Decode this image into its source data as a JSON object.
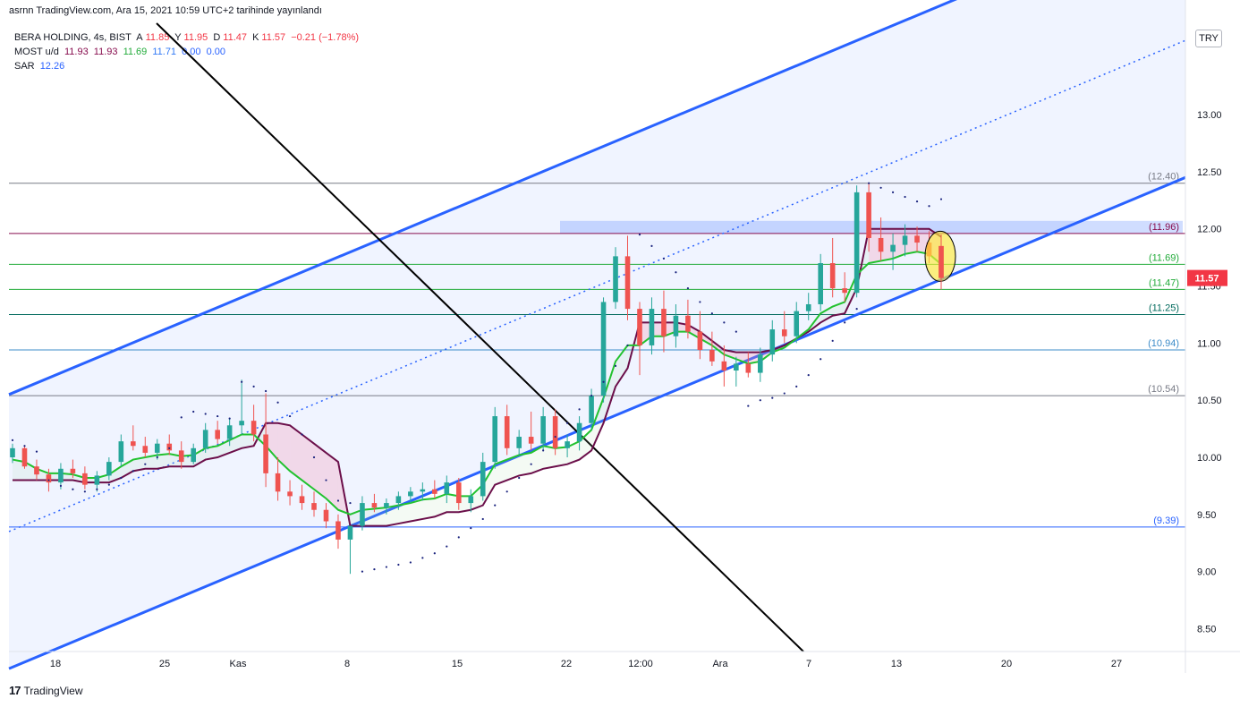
{
  "header": {
    "published": "asrnn TradingView.com, Ara 15, 2021 10:59 UTC+2 tarihinde yayınlandı"
  },
  "legend": {
    "symbol": "BERA HOLDING, 4s, BIST",
    "a_label": "A",
    "a_value": "11.85",
    "y_label": "Y",
    "y_value": "11.95",
    "d_label": "D",
    "d_value": "11.47",
    "k_label": "K",
    "k_value": "11.57",
    "change": "−0.21 (−1.78%)",
    "most_label": "MOST  u/d",
    "most_values": [
      "11.93",
      "11.93",
      "11.69",
      "11.71",
      "0.00",
      "0.00"
    ],
    "sar_label": "SAR",
    "sar_value": "12.26"
  },
  "currency_button": "TRY",
  "brand": {
    "logo": "17",
    "name": "TradingView"
  },
  "colors": {
    "up": "#26a69a",
    "down": "#ef5350",
    "channel": "#2962ff",
    "most": "#22c22f",
    "most_stop": "#6b0f4a",
    "sar": "#1a237e",
    "trend": "#000000",
    "band": "#2962ff"
  },
  "chart_data": {
    "type": "candlestick",
    "title": "",
    "xlabel": "",
    "ylabel": "",
    "ylim": [
      8.3,
      13.8
    ],
    "grid": false,
    "x_ticks": [
      "18",
      "25",
      "Kas",
      "8",
      "15",
      "22",
      "12:00",
      "Ara",
      "7",
      "13",
      "20",
      "27"
    ],
    "y_ticks": [
      "8.50",
      "9.00",
      "9.50",
      "10.00",
      "10.50",
      "11.00",
      "11.50",
      "12.00",
      "12.50",
      "13.00"
    ],
    "last_price": "11.57",
    "levels": [
      {
        "value": 12.4,
        "label": "(12.40)",
        "color": "#787b86"
      },
      {
        "value": 11.96,
        "label": "(11.96)",
        "color": "#880e4f"
      },
      {
        "value": 11.69,
        "label": "(11.69)",
        "color": "#22ab3a"
      },
      {
        "value": 11.47,
        "label": "(11.47)",
        "color": "#22ab3a"
      },
      {
        "value": 11.25,
        "label": "(11.25)",
        "color": "#00695c"
      },
      {
        "value": 10.94,
        "label": "(10.94)",
        "color": "#3d8cc9"
      },
      {
        "value": 10.54,
        "label": "(10.54)",
        "color": "#787b86"
      },
      {
        "value": 9.39,
        "label": "(9.39)",
        "color": "#2962ff"
      }
    ],
    "channel_low_start": 8.15,
    "channel_low_end": 12.45,
    "channel_width": 2.4,
    "candles": [
      [
        10.0,
        10.12,
        9.95,
        10.08
      ],
      [
        10.08,
        10.1,
        9.9,
        9.92
      ],
      [
        9.92,
        9.98,
        9.8,
        9.85
      ],
      [
        9.85,
        9.9,
        9.7,
        9.78
      ],
      [
        9.78,
        9.95,
        9.72,
        9.9
      ],
      [
        9.9,
        9.98,
        9.82,
        9.86
      ],
      [
        9.86,
        9.92,
        9.72,
        9.76
      ],
      [
        9.76,
        9.88,
        9.7,
        9.84
      ],
      [
        9.84,
        10.0,
        9.8,
        9.96
      ],
      [
        9.96,
        10.2,
        9.92,
        10.14
      ],
      [
        10.14,
        10.28,
        10.06,
        10.1
      ],
      [
        10.1,
        10.18,
        10.0,
        10.04
      ],
      [
        10.04,
        10.16,
        9.98,
        10.12
      ],
      [
        10.12,
        10.2,
        10.02,
        10.06
      ],
      [
        10.06,
        10.14,
        9.9,
        9.96
      ],
      [
        9.96,
        10.12,
        9.94,
        10.08
      ],
      [
        10.08,
        10.3,
        10.04,
        10.24
      ],
      [
        10.24,
        10.32,
        10.12,
        10.16
      ],
      [
        10.16,
        10.34,
        10.1,
        10.28
      ],
      [
        10.28,
        10.68,
        10.2,
        10.32
      ],
      [
        10.32,
        10.46,
        10.14,
        10.2
      ],
      [
        10.2,
        10.56,
        9.74,
        9.86
      ],
      [
        9.86,
        10.0,
        9.62,
        9.7
      ],
      [
        9.7,
        9.8,
        9.58,
        9.66
      ],
      [
        9.66,
        9.76,
        9.54,
        9.6
      ],
      [
        9.6,
        9.7,
        9.48,
        9.54
      ],
      [
        9.54,
        9.6,
        9.38,
        9.44
      ],
      [
        9.44,
        9.5,
        9.2,
        9.28
      ],
      [
        9.28,
        9.4,
        8.98,
        9.4
      ],
      [
        9.4,
        9.66,
        9.36,
        9.6
      ],
      [
        9.6,
        9.68,
        9.52,
        9.56
      ],
      [
        9.56,
        9.64,
        9.5,
        9.6
      ],
      [
        9.6,
        9.7,
        9.54,
        9.66
      ],
      [
        9.66,
        9.74,
        9.6,
        9.7
      ],
      [
        9.7,
        9.78,
        9.62,
        9.72
      ],
      [
        9.72,
        9.8,
        9.64,
        9.68
      ],
      [
        9.68,
        9.84,
        9.6,
        9.78
      ],
      [
        9.78,
        9.82,
        9.54,
        9.6
      ],
      [
        9.6,
        9.72,
        9.52,
        9.66
      ],
      [
        9.66,
        10.04,
        9.62,
        9.96
      ],
      [
        9.96,
        10.44,
        9.9,
        10.36
      ],
      [
        10.36,
        10.46,
        10.02,
        10.08
      ],
      [
        10.08,
        10.24,
        10.02,
        10.18
      ],
      [
        10.18,
        10.4,
        10.06,
        10.12
      ],
      [
        10.12,
        10.44,
        10.06,
        10.36
      ],
      [
        10.36,
        10.42,
        10.02,
        10.08
      ],
      [
        10.08,
        10.2,
        10.0,
        10.14
      ],
      [
        10.14,
        10.36,
        10.06,
        10.3
      ],
      [
        10.3,
        10.6,
        10.24,
        10.54
      ],
      [
        10.54,
        11.4,
        10.48,
        11.36
      ],
      [
        11.36,
        11.84,
        11.3,
        11.76
      ],
      [
        11.76,
        11.94,
        11.2,
        11.3
      ],
      [
        11.3,
        11.36,
        10.72,
        10.98
      ],
      [
        10.98,
        11.4,
        10.9,
        11.3
      ],
      [
        11.3,
        11.46,
        10.92,
        11.06
      ],
      [
        11.06,
        11.34,
        10.96,
        11.24
      ],
      [
        11.24,
        11.38,
        11.04,
        11.1
      ],
      [
        11.1,
        11.28,
        10.86,
        10.94
      ],
      [
        10.94,
        11.1,
        10.8,
        10.84
      ],
      [
        10.84,
        10.98,
        10.62,
        10.76
      ],
      [
        10.76,
        10.88,
        10.62,
        10.82
      ],
      [
        10.82,
        10.92,
        10.7,
        10.74
      ],
      [
        10.74,
        10.96,
        10.66,
        10.9
      ],
      [
        10.9,
        11.2,
        10.84,
        11.12
      ],
      [
        11.12,
        11.28,
        11.0,
        11.06
      ],
      [
        11.06,
        11.36,
        11.0,
        11.28
      ],
      [
        11.28,
        11.44,
        11.2,
        11.34
      ],
      [
        11.34,
        11.78,
        11.28,
        11.7
      ],
      [
        11.7,
        11.92,
        11.4,
        11.48
      ],
      [
        11.48,
        11.62,
        11.36,
        11.44
      ],
      [
        11.44,
        12.38,
        11.4,
        12.32
      ],
      [
        12.32,
        12.4,
        11.8,
        11.92
      ],
      [
        11.92,
        12.1,
        11.72,
        11.8
      ],
      [
        11.8,
        11.96,
        11.64,
        11.86
      ],
      [
        11.86,
        12.04,
        11.76,
        11.94
      ],
      [
        11.94,
        12.02,
        11.8,
        11.88
      ],
      [
        11.88,
        11.98,
        11.7,
        11.76
      ],
      [
        11.85,
        11.95,
        11.47,
        11.57
      ]
    ],
    "most": [
      9.98,
      9.96,
      9.9,
      9.86,
      9.86,
      9.85,
      9.82,
      9.82,
      9.85,
      9.92,
      9.98,
      10.0,
      10.02,
      10.03,
      10.01,
      10.02,
      10.08,
      10.1,
      10.15,
      10.2,
      10.2,
      10.1,
      9.98,
      9.88,
      9.8,
      9.72,
      9.64,
      9.54,
      9.5,
      9.54,
      9.55,
      9.56,
      9.58,
      9.6,
      9.63,
      9.64,
      9.68,
      9.66,
      9.66,
      9.76,
      9.94,
      9.98,
      10.02,
      10.04,
      10.1,
      10.08,
      10.09,
      10.14,
      10.24,
      10.52,
      10.84,
      10.98,
      10.98,
      11.06,
      11.06,
      11.1,
      11.1,
      11.04,
      10.98,
      10.9,
      10.86,
      10.82,
      10.84,
      10.92,
      10.96,
      11.04,
      11.12,
      11.26,
      11.32,
      11.36,
      11.6,
      11.7,
      11.72,
      11.74,
      11.78,
      11.8,
      11.78,
      11.69
    ],
    "most_stop": [
      9.8,
      9.8,
      9.8,
      9.8,
      9.8,
      9.8,
      9.78,
      9.78,
      9.78,
      9.82,
      9.88,
      9.9,
      9.9,
      9.92,
      9.92,
      9.92,
      9.98,
      10.0,
      10.04,
      10.08,
      10.1,
      10.3,
      10.3,
      10.28,
      10.2,
      10.12,
      10.04,
      9.96,
      9.4,
      9.4,
      9.4,
      9.4,
      9.42,
      9.44,
      9.46,
      9.48,
      9.52,
      9.52,
      9.54,
      9.58,
      9.76,
      9.8,
      9.84,
      9.86,
      9.9,
      9.92,
      9.94,
      9.98,
      10.06,
      10.3,
      10.62,
      10.78,
      11.18,
      11.18,
      11.18,
      11.18,
      11.16,
      11.1,
      11.02,
      10.94,
      10.92,
      10.92,
      10.92,
      10.94,
      10.98,
      11.04,
      11.1,
      11.18,
      11.24,
      11.26,
      11.48,
      12.0,
      12.0,
      12.0,
      12.0,
      12.0,
      12.0,
      11.93
    ],
    "sar": [
      10.15,
      10.1,
      10.05,
      9.8,
      9.75,
      9.72,
      9.7,
      9.72,
      9.76,
      9.82,
      9.88,
      9.94,
      10.0,
      10.08,
      10.35,
      10.4,
      10.38,
      10.36,
      10.34,
      10.66,
      10.62,
      10.58,
      10.48,
      10.36,
      10.2,
      10.0,
      9.8,
      9.62,
      9.6,
      9.0,
      9.02,
      9.04,
      9.06,
      9.08,
      9.12,
      9.16,
      9.22,
      9.3,
      9.38,
      9.46,
      9.58,
      9.7,
      9.82,
      9.94,
      10.06,
      10.18,
      10.3,
      10.42,
      10.54,
      10.66,
      10.8,
      10.98,
      11.95,
      11.85,
      11.74,
      11.62,
      11.48,
      11.36,
      11.26,
      11.18,
      11.1,
      10.45,
      10.5,
      10.52,
      10.56,
      10.62,
      10.72,
      10.86,
      11.02,
      11.18,
      11.3,
      12.4,
      12.36,
      12.32,
      12.28,
      12.24,
      12.2,
      12.26
    ]
  }
}
